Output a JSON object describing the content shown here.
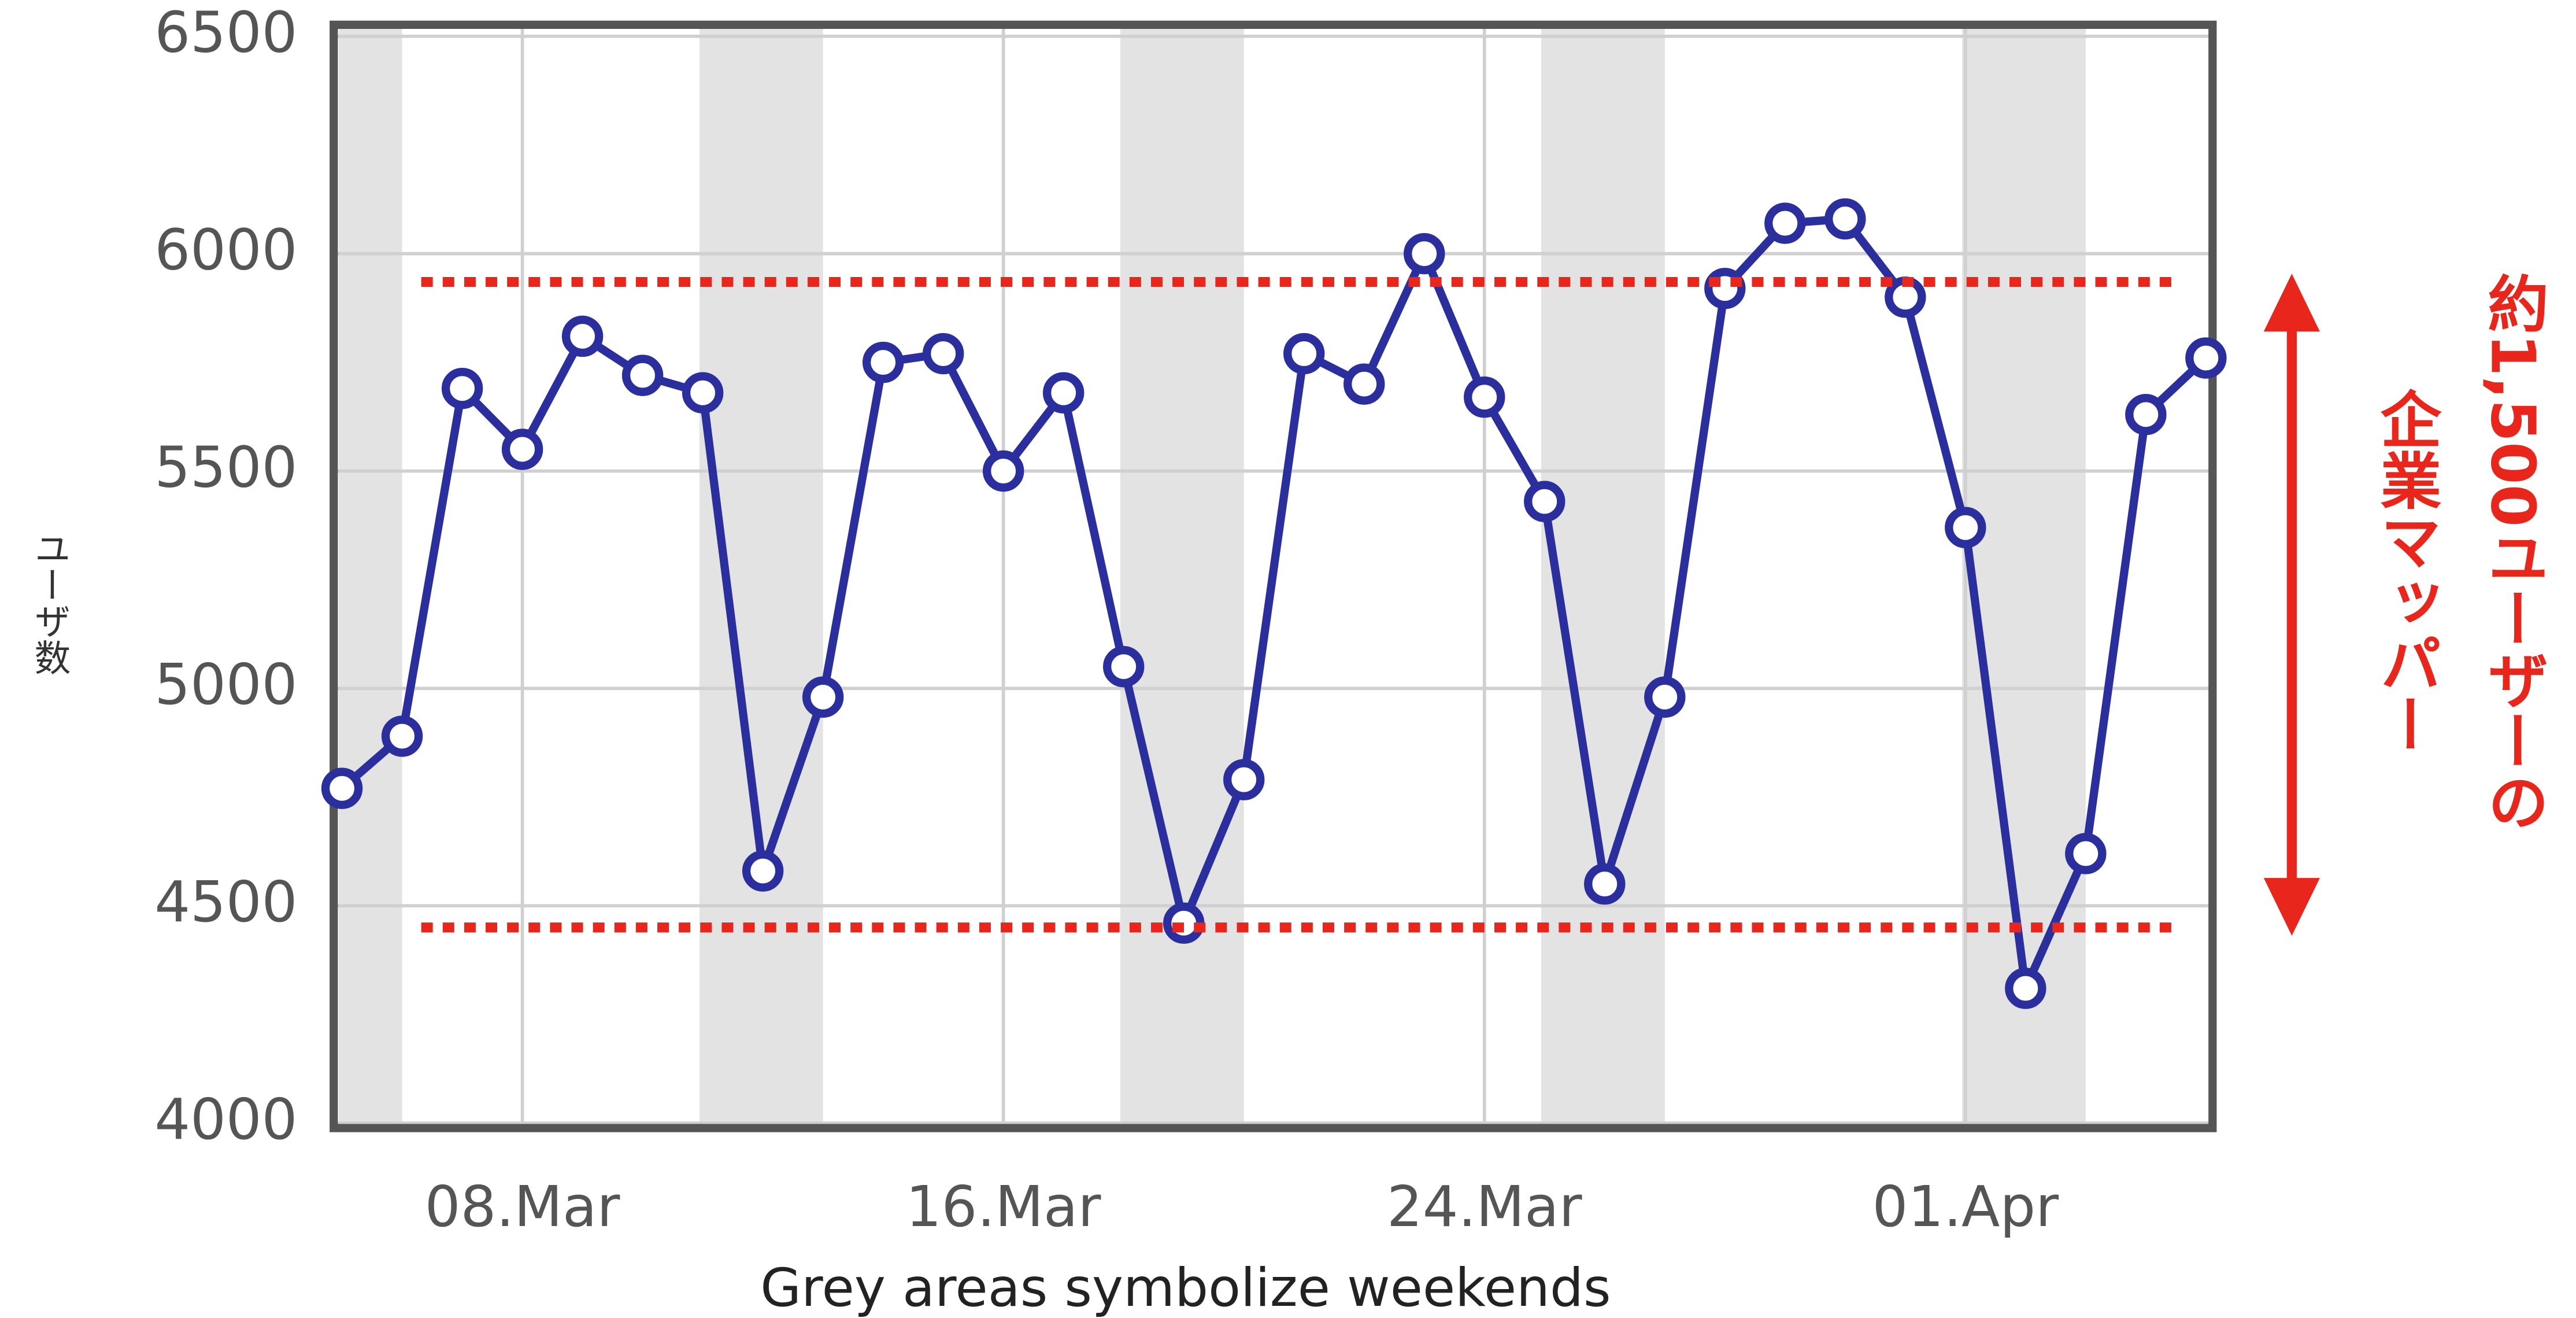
{
  "chart_data": {
    "type": "line",
    "categories": [
      null,
      null,
      null,
      "08.Mar",
      null,
      null,
      null,
      null,
      null,
      null,
      null,
      "16.Mar",
      null,
      null,
      null,
      null,
      null,
      null,
      null,
      "24.Mar",
      null,
      null,
      null,
      null,
      null,
      null,
      null,
      "01.Apr",
      null,
      null,
      null,
      null
    ],
    "series": [
      {
        "color": "#2b2f9e",
        "values": [
          4770,
          4890,
          5690,
          5550,
          5810,
          5720,
          5680,
          4580,
          4980,
          5750,
          5770,
          5500,
          5680,
          5050,
          4460,
          4790,
          5770,
          5700,
          6000,
          5670,
          5430,
          4550,
          4980,
          5920,
          6070,
          6080,
          5900,
          5370,
          4310,
          4620,
          5630,
          5760
        ]
      }
    ],
    "ylim": [
      4000,
      6500
    ],
    "yticks": [
      4000,
      4500,
      5000,
      5500,
      6000,
      6500
    ],
    "ylabel": "ユーザ数",
    "xlabel": "Grey areas symbolize weekends",
    "grid": true,
    "weekend_bands": [
      [
        0,
        1
      ],
      [
        6,
        8
      ],
      [
        13,
        15
      ],
      [
        20,
        22
      ],
      [
        27,
        29
      ]
    ],
    "reference_lines": [
      5935,
      4450
    ],
    "reference_color": "#e8261c",
    "annotation": [
      "約1,500ユーザーの",
      "企業マッパー"
    ]
  }
}
